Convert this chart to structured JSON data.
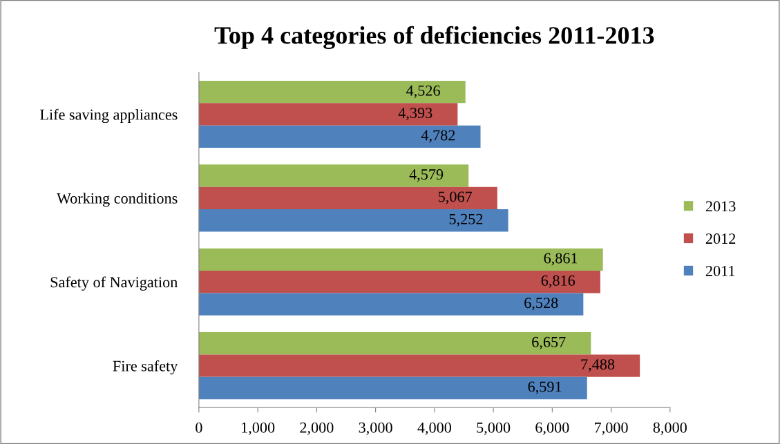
{
  "chart_data": {
    "type": "bar",
    "orientation": "horizontal",
    "title": "Top 4 categories of deficiencies 2011-2013",
    "categories": [
      "Life saving appliances",
      "Working conditions",
      "Safety of Navigation",
      "Fire safety"
    ],
    "series": [
      {
        "name": "2013",
        "color": "#9bbb59",
        "values": [
          4526,
          4579,
          6861,
          6657
        ],
        "value_labels": [
          "4,526",
          "4,579",
          "6,861",
          "6,657"
        ]
      },
      {
        "name": "2012",
        "color": "#c0504d",
        "values": [
          4393,
          5067,
          6816,
          7488
        ],
        "value_labels": [
          "4,393",
          "5,067",
          "6,816",
          "7,488"
        ]
      },
      {
        "name": "2011",
        "color": "#4f81bd",
        "values": [
          4782,
          5252,
          6528,
          6591
        ],
        "value_labels": [
          "4,782",
          "5,252",
          "6,528",
          "6,591"
        ]
      }
    ],
    "xlim": [
      0,
      8000
    ],
    "xticks": [
      {
        "value": 0,
        "label": "0"
      },
      {
        "value": 1000,
        "label": "1,000"
      },
      {
        "value": 2000,
        "label": "2,000"
      },
      {
        "value": 3000,
        "label": "3,000"
      },
      {
        "value": 4000,
        "label": "4,000"
      },
      {
        "value": 5000,
        "label": "5,000"
      },
      {
        "value": 6000,
        "label": "6,000"
      },
      {
        "value": 7000,
        "label": "7,000"
      },
      {
        "value": 8000,
        "label": "8,000"
      }
    ],
    "grid": false,
    "legend": "right"
  }
}
